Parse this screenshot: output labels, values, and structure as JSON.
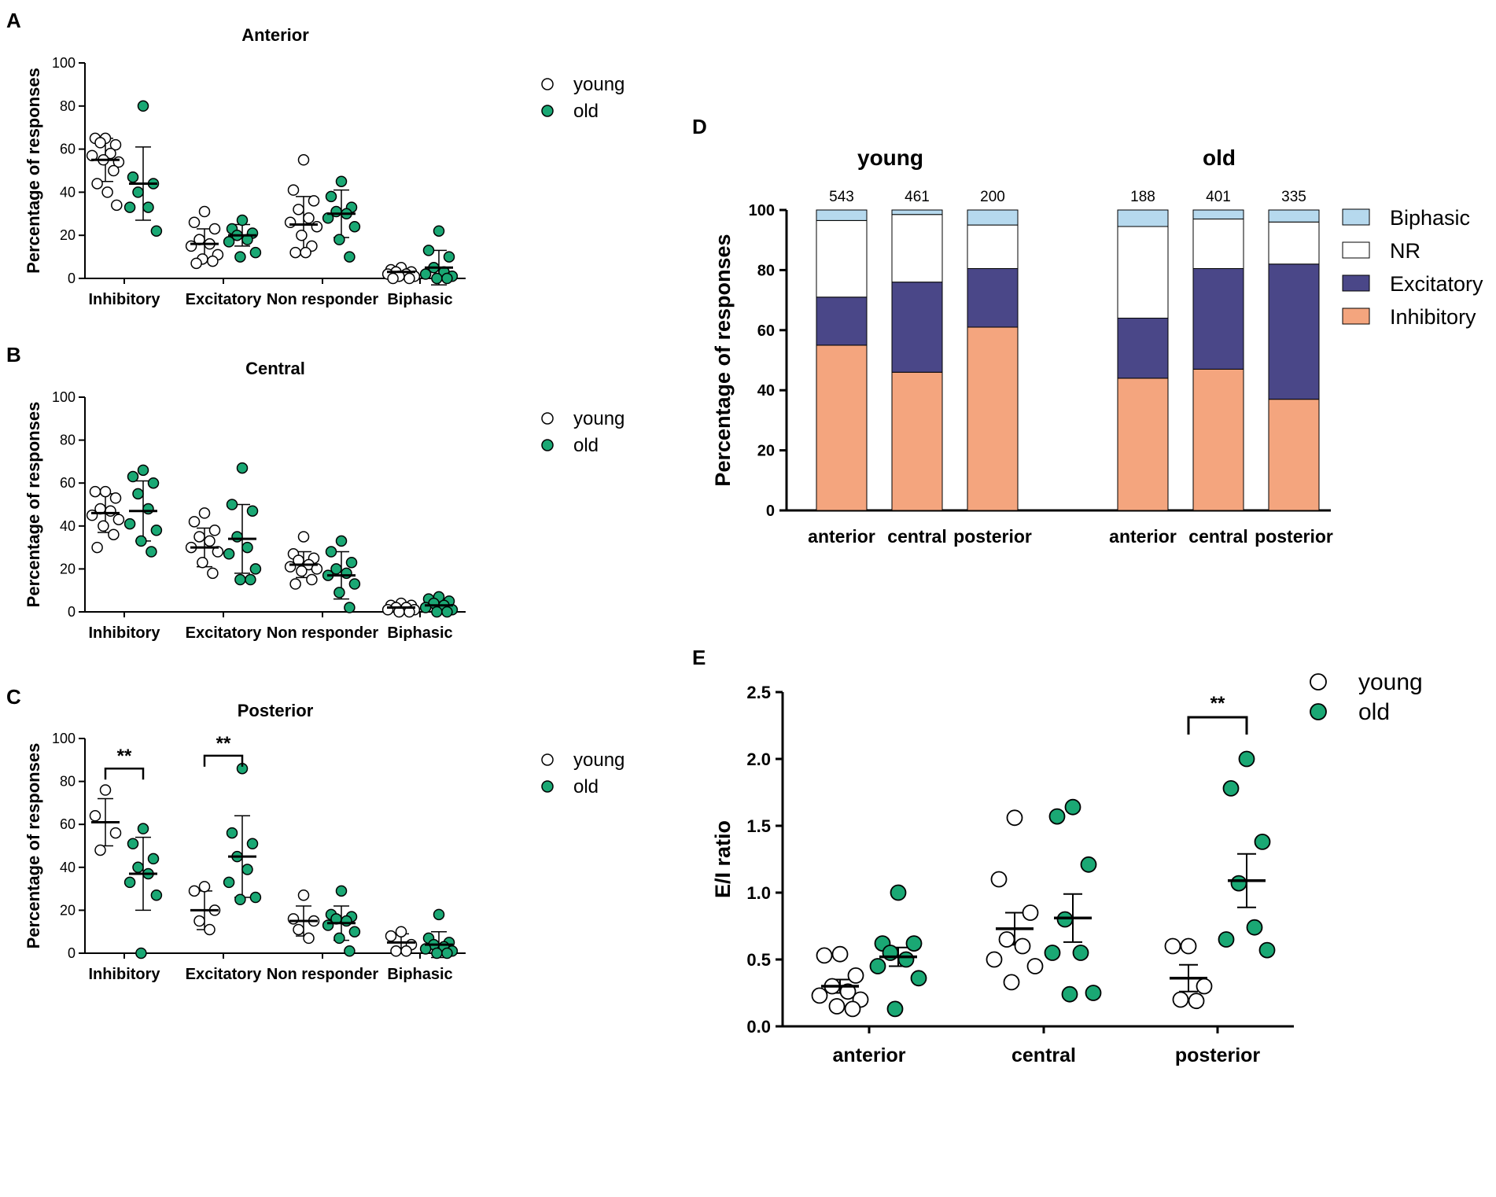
{
  "colors": {
    "young_fill": "#ffffff",
    "old_fill": "#1aa874",
    "inhibitory": "#f4a57e",
    "excitatory": "#4a4788",
    "nr": "#ffffff",
    "biphasic": "#b6d9ee"
  },
  "chart_data": [
    {
      "panel": "A",
      "type": "scatter",
      "title": "Anterior",
      "ylabel": "Percentage of responses",
      "ylim": [
        0,
        100
      ],
      "yticks": [
        0,
        20,
        40,
        60,
        80,
        100
      ],
      "categories": [
        "Inhibitory",
        "Excitatory",
        "Non responder",
        "Biphasic"
      ],
      "legend": [
        "young",
        "old"
      ],
      "series": [
        {
          "name": "young",
          "points": [
            [
              65,
              65,
              62,
              63,
              58,
              57,
              54,
              55,
              50,
              44,
              40,
              34
            ],
            [
              31,
              26,
              23,
              18,
              16,
              15,
              11,
              9,
              8,
              7
            ],
            [
              55,
              41,
              36,
              32,
              28,
              26,
              24,
              20,
              15,
              12,
              12
            ],
            [
              5,
              4,
              3,
              3,
              2,
              2,
              1,
              1,
              0,
              0
            ]
          ],
          "mean": [
            55,
            16,
            25,
            3
          ],
          "sd": [
            10,
            7,
            13,
            1.5
          ]
        },
        {
          "name": "old",
          "points": [
            [
              80,
              47,
              44,
              40,
              33,
              33,
              22
            ],
            [
              27,
              23,
              21,
              20,
              18,
              17,
              12,
              10
            ],
            [
              45,
              38,
              33,
              31,
              30,
              28,
              24,
              18,
              10
            ],
            [
              22,
              13,
              10,
              5,
              3,
              2,
              1,
              0,
              0
            ]
          ],
          "mean": [
            44,
            20,
            30,
            5
          ],
          "sd": [
            17,
            5,
            11,
            8
          ]
        }
      ],
      "significance": []
    },
    {
      "panel": "B",
      "type": "scatter",
      "title": "Central",
      "ylabel": "Percentage of responses",
      "ylim": [
        0,
        100
      ],
      "yticks": [
        0,
        20,
        40,
        60,
        80,
        100
      ],
      "categories": [
        "Inhibitory",
        "Excitatory",
        "Non responder",
        "Biphasic"
      ],
      "legend": [
        "young",
        "old"
      ],
      "series": [
        {
          "name": "young",
          "points": [
            [
              56,
              56,
              53,
              48,
              47,
              45,
              43,
              40,
              36,
              30
            ],
            [
              46,
              42,
              38,
              35,
              33,
              30,
              28,
              23,
              18
            ],
            [
              35,
              27,
              25,
              24,
              22,
              21,
              20,
              19,
              15,
              13
            ],
            [
              4,
              3,
              3,
              2,
              2,
              1,
              1,
              0,
              0
            ]
          ],
          "mean": [
            46,
            30,
            22,
            2
          ],
          "sd": [
            9,
            9,
            6,
            1.5
          ]
        },
        {
          "name": "old",
          "points": [
            [
              66,
              63,
              60,
              55,
              48,
              41,
              38,
              33,
              28
            ],
            [
              67,
              50,
              47,
              35,
              30,
              27,
              20,
              15,
              15
            ],
            [
              33,
              28,
              23,
              20,
              18,
              17,
              13,
              9,
              2
            ],
            [
              7,
              6,
              5,
              4,
              3,
              2,
              1,
              0,
              0
            ]
          ],
          "mean": [
            47,
            34,
            17,
            3
          ],
          "sd": [
            14,
            16,
            11,
            3
          ]
        }
      ],
      "significance": []
    },
    {
      "panel": "C",
      "type": "scatter",
      "title": "Posterior",
      "ylabel": "Percentage of responses",
      "ylim": [
        0,
        100
      ],
      "yticks": [
        0,
        20,
        40,
        60,
        80,
        100
      ],
      "categories": [
        "Inhibitory",
        "Excitatory",
        "Non responder",
        "Biphasic"
      ],
      "legend": [
        "young",
        "old"
      ],
      "series": [
        {
          "name": "young",
          "points": [
            [
              76,
              64,
              56,
              48
            ],
            [
              31,
              29,
              20,
              15,
              11
            ],
            [
              27,
              16,
              15,
              11,
              7
            ],
            [
              10,
              8,
              4,
              1,
              1
            ]
          ],
          "mean": [
            61,
            20,
            15,
            5
          ],
          "sd": [
            11,
            9,
            7,
            4
          ]
        },
        {
          "name": "old",
          "points": [
            [
              58,
              51,
              44,
              40,
              37,
              33,
              27,
              0
            ],
            [
              86,
              56,
              51,
              45,
              39,
              33,
              26,
              25
            ],
            [
              29,
              18,
              17,
              16,
              15,
              13,
              10,
              7,
              1
            ],
            [
              18,
              7,
              5,
              4,
              3,
              2,
              1,
              0,
              0
            ]
          ],
          "mean": [
            37,
            45,
            14,
            4
          ],
          "sd": [
            17,
            19,
            8,
            6
          ]
        }
      ],
      "significance": [
        {
          "category": "Inhibitory",
          "label": "**"
        },
        {
          "category": "Excitatory",
          "label": "**"
        }
      ]
    },
    {
      "panel": "D",
      "type": "bar",
      "stacked": true,
      "ylabel": "Percentage of responses",
      "ylim": [
        0,
        100
      ],
      "yticks": [
        0,
        20,
        40,
        60,
        80,
        100
      ],
      "groups": [
        {
          "name": "young",
          "categories": [
            "anterior",
            "central",
            "posterior"
          ],
          "n": [
            "543",
            "461",
            "200"
          ],
          "stacks": {
            "Inhibitory": [
              55,
              46,
              61
            ],
            "Excitatory": [
              16,
              30,
              19.5
            ],
            "NR": [
              25.5,
              22.5,
              14.5
            ],
            "Biphasic": [
              3.5,
              1.5,
              5
            ]
          }
        },
        {
          "name": "old",
          "categories": [
            "anterior",
            "central",
            "posterior"
          ],
          "n": [
            "188",
            "401",
            "335"
          ],
          "stacks": {
            "Inhibitory": [
              44,
              47,
              37
            ],
            "Excitatory": [
              20,
              33.5,
              45
            ],
            "NR": [
              30.5,
              16.5,
              14
            ],
            "Biphasic": [
              5.5,
              3,
              4
            ]
          }
        }
      ],
      "legend": [
        "Biphasic",
        "NR",
        "Excitatory",
        "Inhibitory"
      ]
    },
    {
      "panel": "E",
      "type": "scatter",
      "ylabel": "E/I ratio",
      "ylim": [
        0,
        2.5
      ],
      "yticks": [
        "0.0",
        "0.5",
        "1.0",
        "1.5",
        "2.0",
        "2.5"
      ],
      "categories": [
        "anterior",
        "central",
        "posterior"
      ],
      "legend": [
        "young",
        "old"
      ],
      "series": [
        {
          "name": "young",
          "points": [
            [
              0.54,
              0.53,
              0.38,
              0.3,
              0.26,
              0.23,
              0.2,
              0.15,
              0.13
            ],
            [
              1.56,
              1.1,
              0.85,
              0.65,
              0.6,
              0.5,
              0.45,
              0.33
            ],
            [
              0.6,
              0.6,
              0.3,
              0.2,
              0.19
            ]
          ],
          "mean": [
            0.3,
            0.73,
            0.36
          ],
          "sem": [
            0.05,
            0.12,
            0.1
          ]
        },
        {
          "name": "old",
          "points": [
            [
              1.0,
              0.62,
              0.62,
              0.55,
              0.5,
              0.45,
              0.36,
              0.13
            ],
            [
              1.64,
              1.57,
              1.21,
              0.8,
              0.55,
              0.55,
              0.25,
              0.24
            ],
            [
              2.0,
              1.78,
              1.38,
              1.07,
              0.74,
              0.65,
              0.57
            ]
          ],
          "mean": [
            0.52,
            0.81,
            1.09
          ],
          "sem": [
            0.07,
            0.18,
            0.2
          ]
        }
      ],
      "significance": [
        {
          "category": "posterior",
          "label": "**"
        }
      ]
    }
  ]
}
